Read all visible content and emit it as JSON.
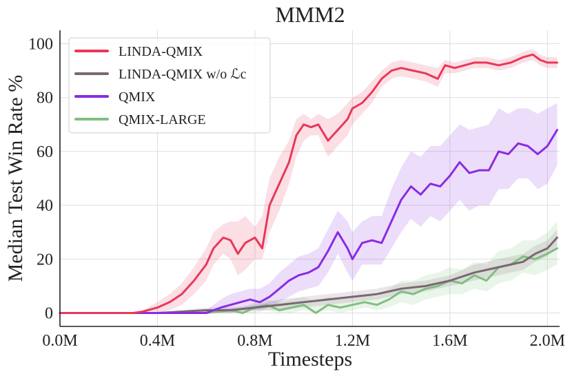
{
  "chart_data": {
    "type": "line",
    "title": "MMM2",
    "xlabel": "Timesteps",
    "ylabel": "Median Test Win Rate %",
    "xlim": [
      0,
      2.05
    ],
    "ylim": [
      -5,
      105
    ],
    "x_ticks": [
      {
        "value": 0,
        "label": "0.0M"
      },
      {
        "value": 0.4,
        "label": "0.4M"
      },
      {
        "value": 0.8,
        "label": "0.8M"
      },
      {
        "value": 1.2,
        "label": "1.2M"
      },
      {
        "value": 1.6,
        "label": "1.6M"
      },
      {
        "value": 2.0,
        "label": "2.0M"
      }
    ],
    "y_ticks": [
      {
        "value": 0,
        "label": "0"
      },
      {
        "value": 20,
        "label": "20"
      },
      {
        "value": 40,
        "label": "40"
      },
      {
        "value": 60,
        "label": "60"
      },
      {
        "value": 80,
        "label": "80"
      },
      {
        "value": 100,
        "label": "100"
      }
    ],
    "grid": true,
    "legend_position": "top-left",
    "series": [
      {
        "name": "LINDA-QMIX",
        "color": "#e8375a",
        "x": [
          0,
          0.1,
          0.2,
          0.3,
          0.34,
          0.4,
          0.45,
          0.5,
          0.55,
          0.6,
          0.63,
          0.67,
          0.7,
          0.73,
          0.76,
          0.8,
          0.83,
          0.86,
          0.9,
          0.94,
          0.97,
          1.0,
          1.03,
          1.06,
          1.1,
          1.14,
          1.18,
          1.2,
          1.24,
          1.28,
          1.32,
          1.36,
          1.4,
          1.45,
          1.5,
          1.55,
          1.58,
          1.62,
          1.66,
          1.7,
          1.75,
          1.8,
          1.85,
          1.9,
          1.94,
          1.97,
          2.0,
          2.04
        ],
        "y": [
          0,
          0,
          0,
          0,
          0.5,
          2,
          4,
          7,
          12,
          18,
          24,
          28,
          27,
          22,
          26,
          28,
          24,
          40,
          48,
          56,
          66,
          70,
          69,
          70,
          64,
          68,
          72,
          76,
          78,
          82,
          87,
          90,
          91,
          90,
          89,
          87,
          92,
          91,
          92,
          93,
          93,
          92,
          93,
          95,
          96,
          94,
          93,
          93
        ],
        "upper": [
          0,
          0,
          0,
          0,
          1,
          4,
          7,
          11,
          17,
          24,
          30,
          33,
          34,
          34,
          36,
          32,
          36,
          50,
          58,
          64,
          72,
          74,
          72,
          74,
          72,
          74,
          78,
          80,
          82,
          86,
          90,
          93,
          94,
          93,
          92,
          91,
          94,
          93,
          94,
          95,
          95,
          94,
          95,
          97,
          98,
          96,
          95,
          95
        ],
        "lower": [
          0,
          0,
          0,
          0,
          0,
          0,
          1,
          3,
          7,
          12,
          18,
          22,
          20,
          14,
          16,
          20,
          20,
          30,
          38,
          48,
          58,
          64,
          66,
          66,
          58,
          62,
          66,
          70,
          74,
          78,
          84,
          87,
          88,
          87,
          86,
          84,
          89,
          89,
          90,
          91,
          91,
          90,
          91,
          93,
          94,
          92,
          91,
          91
        ]
      },
      {
        "name": "LINDA-QMIX w/o ℒc",
        "color": "#7b6673",
        "x": [
          0,
          0.1,
          0.2,
          0.3,
          0.4,
          0.5,
          0.6,
          0.7,
          0.8,
          0.9,
          1.0,
          1.1,
          1.2,
          1.3,
          1.4,
          1.5,
          1.6,
          1.7,
          1.8,
          1.9,
          1.95,
          2.0,
          2.04
        ],
        "y": [
          0,
          0,
          0,
          0,
          0,
          0.5,
          1,
          1,
          2,
          3,
          4,
          5,
          6,
          7,
          9,
          10,
          12,
          15,
          17,
          19,
          22,
          24,
          28
        ],
        "upper": [
          0,
          0,
          0,
          0,
          0,
          1,
          2,
          2,
          3,
          5,
          6,
          7,
          8,
          9,
          11,
          12,
          14,
          18,
          20,
          22,
          25,
          27,
          31
        ],
        "lower": [
          0,
          0,
          0,
          0,
          0,
          0,
          0,
          0,
          1,
          1,
          2,
          3,
          4,
          5,
          7,
          8,
          10,
          12,
          14,
          16,
          19,
          21,
          25
        ]
      },
      {
        "name": "QMIX",
        "color": "#8a2be2",
        "x": [
          0,
          0.2,
          0.4,
          0.5,
          0.6,
          0.66,
          0.7,
          0.74,
          0.78,
          0.82,
          0.86,
          0.9,
          0.94,
          0.98,
          1.02,
          1.06,
          1.1,
          1.14,
          1.18,
          1.2,
          1.24,
          1.28,
          1.32,
          1.36,
          1.4,
          1.44,
          1.48,
          1.52,
          1.56,
          1.6,
          1.64,
          1.68,
          1.72,
          1.76,
          1.8,
          1.84,
          1.88,
          1.92,
          1.96,
          2.0,
          2.04
        ],
        "y": [
          0,
          0,
          0,
          0,
          0,
          2,
          3,
          4,
          5,
          4,
          6,
          9,
          12,
          14,
          15,
          17,
          23,
          30,
          24,
          20,
          26,
          27,
          26,
          34,
          42,
          47,
          44,
          48,
          47,
          51,
          56,
          52,
          53,
          53,
          60,
          59,
          63,
          62,
          59,
          62,
          68
        ],
        "upper": [
          0,
          0,
          0,
          0,
          1,
          5,
          7,
          8,
          9,
          9,
          11,
          15,
          18,
          21,
          22,
          24,
          31,
          38,
          34,
          30,
          34,
          36,
          36,
          46,
          54,
          60,
          58,
          62,
          62,
          66,
          70,
          68,
          69,
          70,
          76,
          74,
          76,
          76,
          74,
          76,
          78
        ],
        "lower": [
          0,
          0,
          0,
          0,
          0,
          0,
          0,
          1,
          1,
          1,
          2,
          4,
          6,
          8,
          9,
          10,
          15,
          22,
          15,
          12,
          18,
          18,
          18,
          24,
          30,
          35,
          32,
          36,
          34,
          38,
          42,
          38,
          40,
          40,
          46,
          46,
          50,
          50,
          46,
          48,
          55
        ]
      },
      {
        "name": "QMIX-LARGE",
        "color": "#7fbf7f",
        "x": [
          0,
          0.2,
          0.4,
          0.5,
          0.6,
          0.7,
          0.75,
          0.8,
          0.85,
          0.9,
          0.95,
          1.0,
          1.05,
          1.1,
          1.15,
          1.2,
          1.25,
          1.3,
          1.35,
          1.4,
          1.45,
          1.5,
          1.55,
          1.6,
          1.65,
          1.7,
          1.75,
          1.8,
          1.85,
          1.9,
          1.95,
          2.0,
          2.04
        ],
        "y": [
          0,
          0,
          0,
          0,
          0,
          1,
          0,
          2,
          3,
          1,
          2,
          3,
          0,
          3,
          2,
          3,
          4,
          3,
          5,
          8,
          7,
          9,
          10,
          12,
          11,
          14,
          12,
          17,
          18,
          21,
          20,
          22,
          24
        ],
        "upper": [
          0,
          0,
          0,
          0,
          1,
          2,
          2,
          4,
          5,
          4,
          5,
          6,
          4,
          6,
          5,
          6,
          7,
          6,
          9,
          12,
          12,
          14,
          15,
          17,
          16,
          19,
          18,
          23,
          24,
          27,
          27,
          30,
          34
        ],
        "lower": [
          0,
          0,
          0,
          0,
          0,
          0,
          0,
          0,
          1,
          0,
          0,
          1,
          0,
          1,
          0,
          1,
          2,
          1,
          2,
          4,
          3,
          5,
          6,
          7,
          7,
          9,
          8,
          11,
          12,
          15,
          14,
          16,
          18
        ]
      }
    ]
  }
}
